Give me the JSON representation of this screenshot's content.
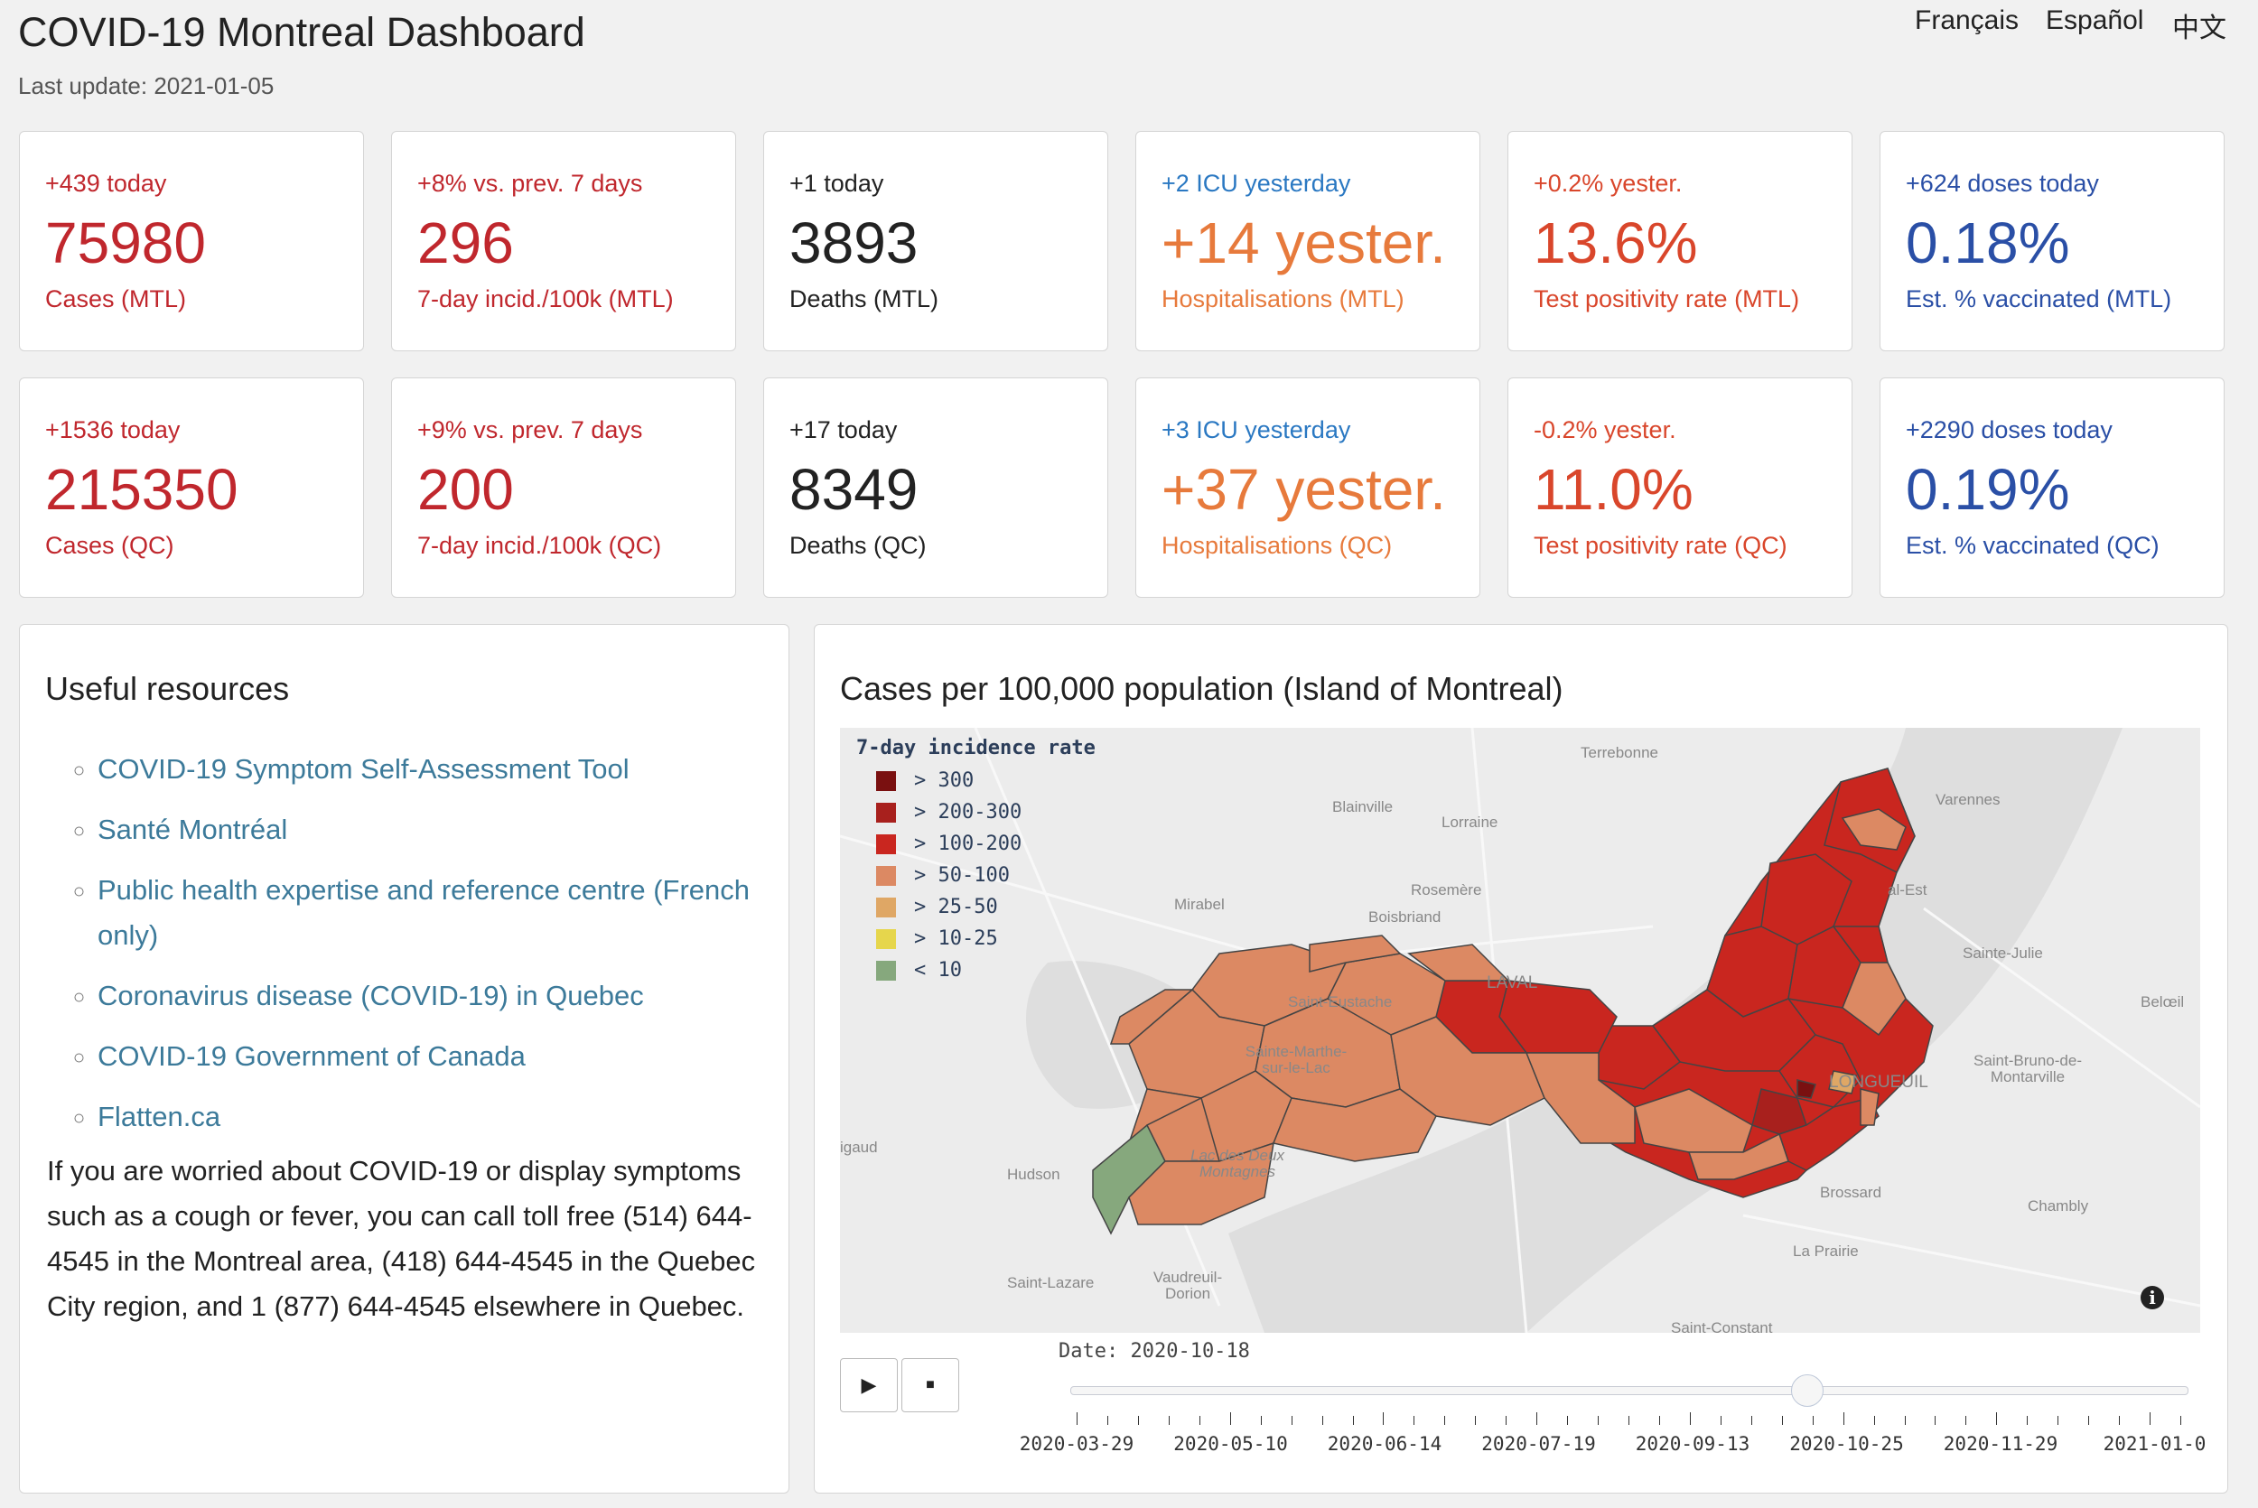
{
  "header": {
    "title": "COVID-19 Montreal Dashboard",
    "last_update": "Last update: 2021-01-05",
    "languages": [
      "Français",
      "Español",
      "中文"
    ]
  },
  "cards_mtl": [
    {
      "delta": "+439 today",
      "value": "75980",
      "label": "Cases (MTL)"
    },
    {
      "delta": "+8% vs. prev. 7 days",
      "value": "296",
      "label": "7-day incid./100k (MTL)"
    },
    {
      "delta": "+1 today",
      "value": "3893",
      "label": "Deaths (MTL)"
    },
    {
      "delta": "+2 ICU yesterday",
      "value": "+14 yester.",
      "label": "Hospitalisations (MTL)"
    },
    {
      "delta": "+0.2% yester.",
      "value": "13.6%",
      "label": "Test positivity rate (MTL)"
    },
    {
      "delta": "+624 doses today",
      "value": "0.18%",
      "label": "Est. % vaccinated (MTL)"
    }
  ],
  "cards_qc": [
    {
      "delta": "+1536 today",
      "value": "215350",
      "label": "Cases (QC)"
    },
    {
      "delta": "+9% vs. prev. 7 days",
      "value": "200",
      "label": "7-day incid./100k (QC)"
    },
    {
      "delta": "+17 today",
      "value": "8349",
      "label": "Deaths (QC)"
    },
    {
      "delta": "+3 ICU yesterday",
      "value": "+37 yester.",
      "label": "Hospitalisations (QC)"
    },
    {
      "delta": "-0.2% yester.",
      "value": "11.0%",
      "label": "Test positivity rate (QC)"
    },
    {
      "delta": "+2290 doses today",
      "value": "0.19%",
      "label": "Est. % vaccinated (QC)"
    }
  ],
  "colors": {
    "cases": "#c0272d",
    "deaths": "#222222",
    "icu": "#2a78c2",
    "hosp": "#e77a3c",
    "positivity": "#d9462b",
    "vaccinated": "#2a4fa6"
  },
  "resources": {
    "title": "Useful resources",
    "links": [
      "COVID-19 Symptom Self-Assessment Tool",
      "Santé Montréal",
      "Public health expertise and reference centre (French only)",
      "Coronavirus disease (COVID-19) in Quebec",
      "COVID-19 Government of Canada",
      "Flatten.ca"
    ],
    "paragraph": "If you are worried about COVID-19 or display symptoms such as a cough or fever, you can call toll free (514) 644-4545 in the Montreal area, (418) 644-4545 in the Quebec City region, and 1 (877) 644-4545 elsewhere in Quebec."
  },
  "map_panel": {
    "title": "Cases per 100,000 population (Island of Montreal)",
    "legend_title": "7-day incidence rate",
    "legend": [
      {
        "label": "> 300",
        "color": "#7a1010"
      },
      {
        "label": "> 200-300",
        "color": "#a8201d"
      },
      {
        "label": "> 100-200",
        "color": "#c9261f"
      },
      {
        "label": "> 50-100",
        "color": "#dc8963"
      },
      {
        "label": "> 25-50",
        "color": "#dfa765"
      },
      {
        "label": "> 10-25",
        "color": "#e6d64c"
      },
      {
        "label": "< 10",
        "color": "#86a87d"
      }
    ],
    "places": [
      "Terrebonne",
      "Blainville",
      "Lorraine",
      "Varennes",
      "Rosemère",
      "Mirabel",
      "Boisbriand",
      "al-Est",
      "Sainte-Julie",
      "LAVAL",
      "Saint-Eustache",
      "Belœil",
      "Sainte-Marthe-sur-le-Lac",
      "LONGUEUIL",
      "Saint-Bruno-de-Montarville",
      "igaud",
      "Lac des Deux Montagnes",
      "Hudson",
      "Brossard",
      "Chambly",
      "La Prairie",
      "Saint-Lazare",
      "Vaudreuil-Dorion",
      "Saint-Constant"
    ],
    "info_icon": "i"
  },
  "slider": {
    "play_label": "▶",
    "stop_label": "■",
    "current": "Date: 2020-10-18",
    "position_fraction": 0.66,
    "tick_labels": [
      "2020-03-29",
      "2020-05-10",
      "2020-06-14",
      "2020-07-19",
      "2020-09-13",
      "2020-10-25",
      "2020-11-29",
      "2021-01-0"
    ]
  }
}
